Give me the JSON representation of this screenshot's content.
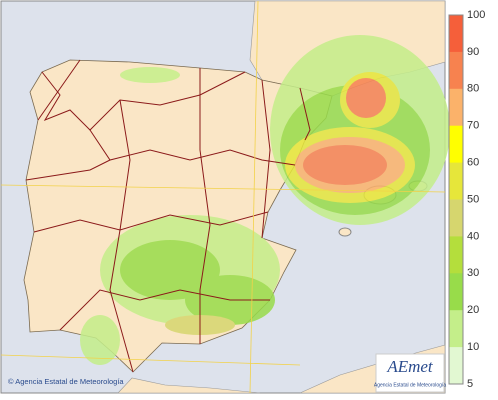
{
  "map": {
    "credit": "© Agencia Estatal de Meteorología",
    "logo": "AEmet",
    "logo_subtitle": "Agencia Estatal de Meteorología"
  },
  "legend": {
    "levels": [
      100,
      90,
      80,
      70,
      60,
      50,
      40,
      30,
      20,
      10,
      5
    ],
    "colors": [
      "#f55f3a",
      "#f7824f",
      "#fbb26a",
      "#ffff00",
      "#e6e63a",
      "#d6d66e",
      "#b4de3c",
      "#98dc4a",
      "#c4ee8a",
      "#e2f8d2"
    ]
  }
}
